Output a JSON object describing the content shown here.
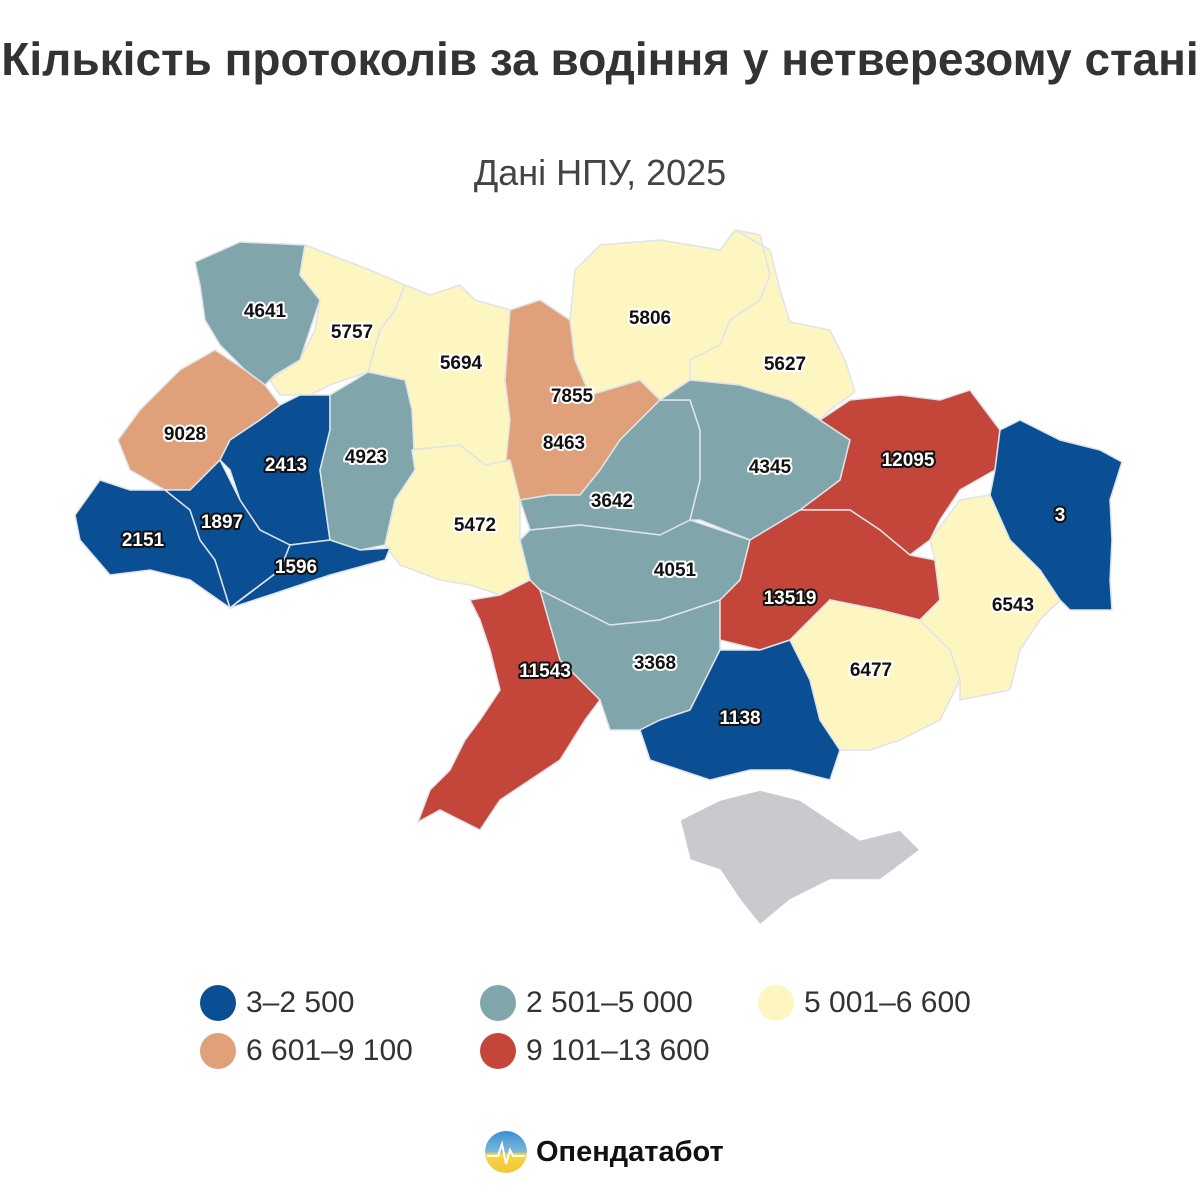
{
  "title": "Кількість протоколів за водіння у нетверезому стані",
  "subtitle": "Дані НПУ, 2025",
  "legend": [
    {
      "label": "3–2 500",
      "color": "#0a4f93"
    },
    {
      "label": "2 501–5 000",
      "color": "#80a6ab"
    },
    {
      "label": "5 001–6 600",
      "color": "#fdf6c0"
    },
    {
      "label": "6 601–9 100",
      "color": "#e0a07a"
    },
    {
      "label": "9 101–13 600",
      "color": "#c4463a"
    }
  ],
  "no_data_color": "#c8cacd",
  "regions": [
    {
      "value": "4641",
      "class": 1
    },
    {
      "value": "5757",
      "class": 2
    },
    {
      "value": "5694",
      "class": 2
    },
    {
      "value": "7855",
      "class": 3
    },
    {
      "value": "8463",
      "class": 3
    },
    {
      "value": "5806",
      "class": 2
    },
    {
      "value": "5627",
      "class": 2
    },
    {
      "value": "9028",
      "class": 3
    },
    {
      "value": "2413",
      "class": 0
    },
    {
      "value": "4923",
      "class": 1
    },
    {
      "value": "5472",
      "class": 2
    },
    {
      "value": "2151",
      "class": 0
    },
    {
      "value": "1897",
      "class": 0
    },
    {
      "value": "1596",
      "class": 0
    },
    {
      "value": "3642",
      "class": 1
    },
    {
      "value": "4345",
      "class": 1
    },
    {
      "value": "4051",
      "class": 1
    },
    {
      "value": "3368",
      "class": 1
    },
    {
      "value": "11543",
      "class": 4
    },
    {
      "value": "12095",
      "class": 4
    },
    {
      "value": "13519",
      "class": 4
    },
    {
      "value": "1138",
      "class": 0
    },
    {
      "value": "6477",
      "class": 2
    },
    {
      "value": "6543",
      "class": 2
    },
    {
      "value": "3",
      "class": 0
    }
  ],
  "brand": {
    "name": "Опендатабот",
    "logo": "opendatabot-logo"
  }
}
